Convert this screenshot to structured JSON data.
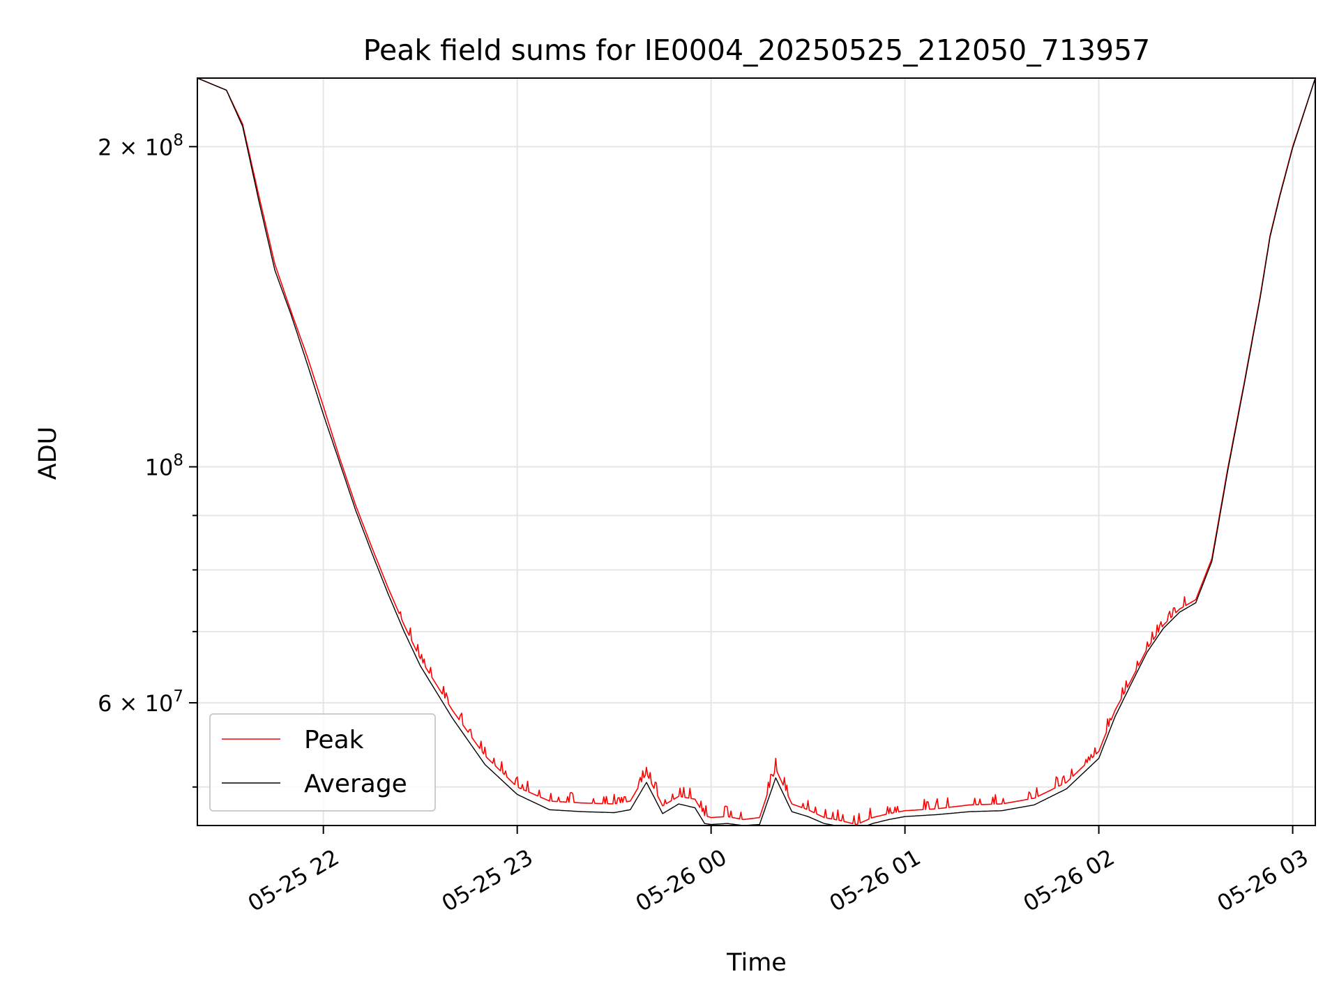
{
  "chart_data": {
    "type": "line",
    "title": "Peak field sums for IE0004_20250525_212050_713957",
    "xlabel": "Time",
    "ylabel": "ADU",
    "x_unit": "time",
    "y_scale": "log",
    "xlim": [
      "05-25 21:21",
      "05-26 03:07"
    ],
    "ylim": [
      46000000,
      232000000
    ],
    "x_tick_labels": [
      {
        "time": "05-25 22:00",
        "label": "05-25 22"
      },
      {
        "time": "05-25 23:00",
        "label": "05-25 23"
      },
      {
        "time": "05-26 00:00",
        "label": "05-26 00"
      },
      {
        "time": "05-26 01:00",
        "label": "05-26 01"
      },
      {
        "time": "05-26 02:00",
        "label": "05-26 02"
      },
      {
        "time": "05-26 03:00",
        "label": "05-26 03"
      }
    ],
    "y_major_ticks": [
      {
        "value": 60000000,
        "mantissa": "6",
        "exponent": "7"
      },
      {
        "value": 100000000,
        "mantissa": "",
        "exponent": "8"
      },
      {
        "value": 200000000,
        "mantissa": "2",
        "exponent": "8"
      }
    ],
    "y_minor_ticks": [
      50000000,
      70000000,
      80000000,
      90000000
    ],
    "grid": true,
    "legend_position": "lower-left",
    "legend": [
      {
        "label": "Peak",
        "color": "#ff0000"
      },
      {
        "label": "Average",
        "color": "#000000"
      }
    ],
    "series": [
      {
        "name": "Peak",
        "color": "#ff0000",
        "noisy_spikes": true,
        "x": [
          "05-25 21:21",
          "05-25 21:30",
          "05-25 21:35",
          "05-25 21:40",
          "05-25 21:45",
          "05-25 21:50",
          "05-25 21:55",
          "05-25 22:00",
          "05-25 22:05",
          "05-25 22:10",
          "05-25 22:15",
          "05-25 22:20",
          "05-25 22:25",
          "05-25 22:30",
          "05-25 22:40",
          "05-25 22:50",
          "05-25 23:00",
          "05-25 23:10",
          "05-25 23:20",
          "05-25 23:30",
          "05-25 23:35",
          "05-25 23:40",
          "05-25 23:45",
          "05-25 23:50",
          "05-25 23:55",
          "05-25 23:58",
          "05-26 00:00",
          "05-26 00:05",
          "05-26 00:10",
          "05-26 00:15",
          "05-26 00:20",
          "05-26 00:25",
          "05-26 00:30",
          "05-26 00:35",
          "05-26 00:40",
          "05-26 00:45",
          "05-26 00:50",
          "05-26 00:55",
          "05-26 01:00",
          "05-26 01:10",
          "05-26 01:20",
          "05-26 01:30",
          "05-26 01:40",
          "05-26 01:50",
          "05-26 02:00",
          "05-26 02:05",
          "05-26 02:10",
          "05-26 02:15",
          "05-26 02:20",
          "05-26 02:25",
          "05-26 02:30",
          "05-26 02:35",
          "05-26 02:40",
          "05-26 02:45",
          "05-26 02:50",
          "05-26 02:53",
          "05-26 02:56",
          "05-26 03:00",
          "05-26 03:07"
        ],
        "values": [
          232000000,
          226000000,
          210000000,
          180000000,
          155000000,
          140000000,
          127000000,
          114000000,
          102000000,
          92000000,
          84000000,
          77000000,
          71000000,
          66000000,
          59000000,
          53500000,
          50000000,
          48500000,
          48300000,
          48200000,
          48500000,
          51500000,
          48000000,
          49000000,
          48700000,
          47000000,
          46800000,
          46900000,
          46600000,
          46800000,
          52000000,
          48200000,
          47600000,
          46800000,
          46500000,
          46100000,
          46800000,
          47200000,
          47500000,
          47700000,
          48100000,
          48200000,
          48800000,
          50500000,
          54000000,
          59000000,
          63000000,
          67500000,
          71000000,
          73500000,
          75000000,
          82000000,
          100000000,
          120000000,
          145000000,
          165000000,
          180000000,
          200000000,
          232000000
        ]
      },
      {
        "name": "Average",
        "color": "#000000",
        "noisy_spikes": false,
        "x": [
          "05-25 21:21",
          "05-25 21:30",
          "05-25 21:35",
          "05-25 21:40",
          "05-25 21:45",
          "05-25 21:50",
          "05-25 21:55",
          "05-25 22:00",
          "05-25 22:05",
          "05-25 22:10",
          "05-25 22:15",
          "05-25 22:20",
          "05-25 22:25",
          "05-25 22:30",
          "05-25 22:40",
          "05-25 22:50",
          "05-25 23:00",
          "05-25 23:10",
          "05-25 23:20",
          "05-25 23:30",
          "05-25 23:35",
          "05-25 23:40",
          "05-25 23:45",
          "05-25 23:50",
          "05-25 23:55",
          "05-25 23:58",
          "05-26 00:00",
          "05-26 00:05",
          "05-26 00:10",
          "05-26 00:15",
          "05-26 00:20",
          "05-26 00:25",
          "05-26 00:30",
          "05-26 00:35",
          "05-26 00:40",
          "05-26 00:45",
          "05-26 00:50",
          "05-26 00:55",
          "05-26 01:00",
          "05-26 01:10",
          "05-26 01:20",
          "05-26 01:30",
          "05-26 01:40",
          "05-26 01:50",
          "05-26 02:00",
          "05-26 02:05",
          "05-26 02:10",
          "05-26 02:15",
          "05-26 02:20",
          "05-26 02:25",
          "05-26 02:30",
          "05-26 02:35",
          "05-26 02:40",
          "05-26 02:45",
          "05-26 02:50",
          "05-26 02:53",
          "05-26 02:56",
          "05-26 03:00",
          "05-26 03:07"
        ],
        "values": [
          232000000,
          226000000,
          209000000,
          178000000,
          153000000,
          139000000,
          125000000,
          112000000,
          101000000,
          91000000,
          83000000,
          76000000,
          70000000,
          65000000,
          58000000,
          52500000,
          49200000,
          47600000,
          47400000,
          47300000,
          47600000,
          50500000,
          47200000,
          48200000,
          47800000,
          46200000,
          46100000,
          46200000,
          46000000,
          46100000,
          51000000,
          47400000,
          46900000,
          46200000,
          45900000,
          45600000,
          46200000,
          46600000,
          46900000,
          47100000,
          47400000,
          47500000,
          48100000,
          49800000,
          53200000,
          58200000,
          62500000,
          67000000,
          70500000,
          73000000,
          74500000,
          81500000,
          99500000,
          119500000,
          144500000,
          164500000,
          179500000,
          199500000,
          232000000
        ]
      }
    ]
  }
}
